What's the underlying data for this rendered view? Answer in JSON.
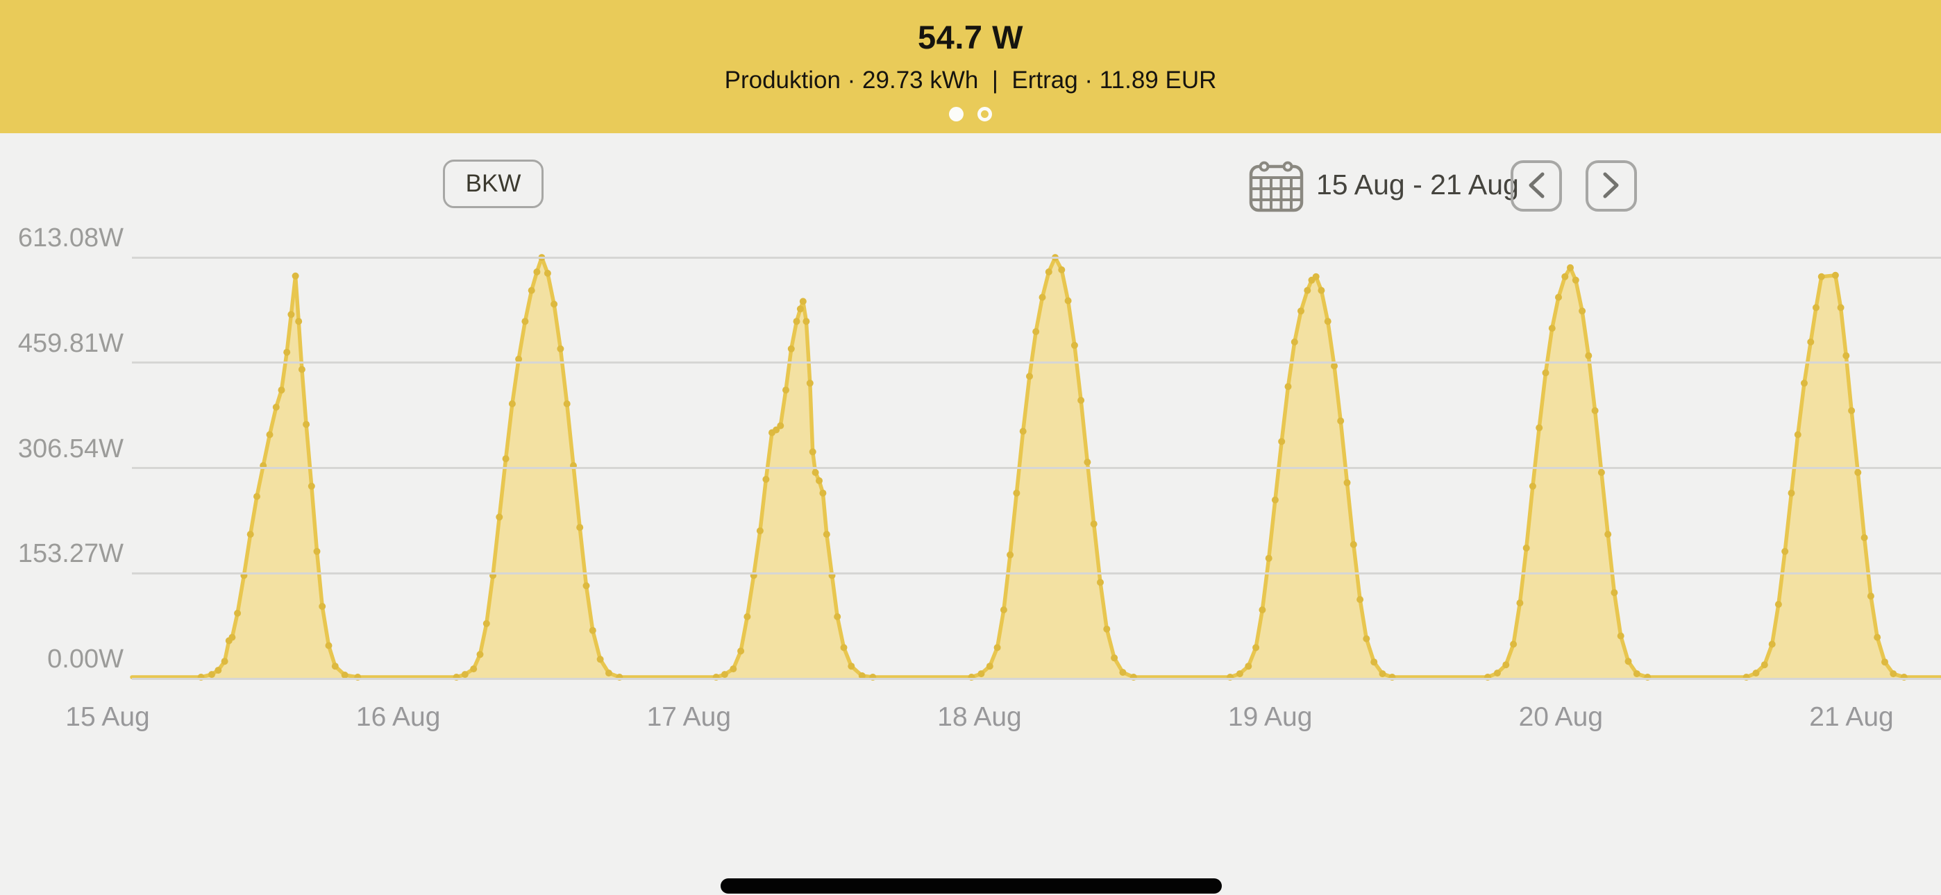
{
  "header": {
    "title": "54.7 W",
    "subtitle": "Produktion · 29.73 kWh  |  Ertrag · 11.89 EUR",
    "accent_bg": "#e9cb59",
    "text_color": "#16140f",
    "page_dots": {
      "count": 2,
      "active_index": 0
    }
  },
  "controls": {
    "source_button": "BKW",
    "date_range": "15 Aug - 21 Aug",
    "calendar_icon": "calendar-icon",
    "prev_icon": "chevron-left",
    "next_icon": "chevron-right"
  },
  "chart_data": {
    "type": "area",
    "title": "",
    "xlabel": "",
    "ylabel": "",
    "unit": "W",
    "ylim": [
      0,
      613.08
    ],
    "grid": true,
    "legend": "none",
    "y_ticks": [
      "613.08W",
      "459.81W",
      "306.54W",
      "153.27W",
      "0.00W"
    ],
    "y_values": [
      613.08,
      459.81,
      306.54,
      153.27,
      0
    ],
    "categories": [
      "15 Aug",
      "16 Aug",
      "17 Aug",
      "18 Aug",
      "19 Aug",
      "20 Aug",
      "21 Aug"
    ],
    "line_color": "#e8c64f",
    "fill_color": "#f3e1a2",
    "marker_color": "#ddb93f",
    "grid_color": "#d6d6d4",
    "series": [
      {
        "name": "Produktion",
        "days": [
          {
            "date": "15 Aug",
            "points": [
              [
                5.6,
                2
              ],
              [
                6.6,
                6
              ],
              [
                7.2,
                12
              ],
              [
                7.8,
                25
              ],
              [
                8.2,
                55
              ],
              [
                8.5,
                60
              ],
              [
                9.0,
                95
              ],
              [
                9.6,
                150
              ],
              [
                10.2,
                210
              ],
              [
                10.8,
                265
              ],
              [
                11.4,
                310
              ],
              [
                12.0,
                355
              ],
              [
                12.6,
                395
              ],
              [
                13.1,
                420
              ],
              [
                13.6,
                475
              ],
              [
                14.0,
                530
              ],
              [
                14.4,
                586
              ],
              [
                14.7,
                520
              ],
              [
                15.0,
                450
              ],
              [
                15.4,
                370
              ],
              [
                15.9,
                280
              ],
              [
                16.4,
                185
              ],
              [
                16.9,
                105
              ],
              [
                17.5,
                48
              ],
              [
                18.1,
                18
              ],
              [
                19.0,
                5
              ],
              [
                20.2,
                2
              ]
            ]
          },
          {
            "date": "16 Aug",
            "points": [
              [
                5.4,
                2
              ],
              [
                6.2,
                6
              ],
              [
                7.0,
                14
              ],
              [
                7.6,
                35
              ],
              [
                8.2,
                80
              ],
              [
                8.8,
                150
              ],
              [
                9.4,
                235
              ],
              [
                10.0,
                320
              ],
              [
                10.6,
                400
              ],
              [
                11.2,
                465
              ],
              [
                11.8,
                520
              ],
              [
                12.4,
                565
              ],
              [
                12.9,
                592
              ],
              [
                13.35,
                613
              ],
              [
                13.9,
                590
              ],
              [
                14.5,
                545
              ],
              [
                15.1,
                480
              ],
              [
                15.7,
                400
              ],
              [
                16.3,
                310
              ],
              [
                16.9,
                220
              ],
              [
                17.5,
                135
              ],
              [
                18.1,
                70
              ],
              [
                18.8,
                28
              ],
              [
                19.6,
                8
              ],
              [
                20.6,
                2
              ]
            ]
          },
          {
            "date": "17 Aug",
            "points": [
              [
                5.6,
                2
              ],
              [
                6.4,
                6
              ],
              [
                7.2,
                14
              ],
              [
                7.9,
                40
              ],
              [
                8.5,
                90
              ],
              [
                9.1,
                150
              ],
              [
                9.7,
                215
              ],
              [
                10.25,
                290
              ],
              [
                10.8,
                358
              ],
              [
                11.2,
                362
              ],
              [
                11.6,
                368
              ],
              [
                12.1,
                420
              ],
              [
                12.6,
                480
              ],
              [
                13.1,
                520
              ],
              [
                13.45,
                538
              ],
              [
                13.7,
                549
              ],
              [
                14.0,
                520
              ],
              [
                14.35,
                430
              ],
              [
                14.6,
                330
              ],
              [
                14.85,
                300
              ],
              [
                15.2,
                288
              ],
              [
                15.55,
                270
              ],
              [
                15.9,
                210
              ],
              [
                16.4,
                150
              ],
              [
                16.9,
                90
              ],
              [
                17.5,
                45
              ],
              [
                18.2,
                18
              ],
              [
                19.2,
                4
              ],
              [
                20.2,
                2
              ]
            ]
          },
          {
            "date": "18 Aug",
            "points": [
              [
                5.4,
                2
              ],
              [
                6.3,
                7
              ],
              [
                7.1,
                18
              ],
              [
                7.8,
                45
              ],
              [
                8.4,
                100
              ],
              [
                9.0,
                180
              ],
              [
                9.6,
                270
              ],
              [
                10.2,
                360
              ],
              [
                10.8,
                440
              ],
              [
                11.4,
                505
              ],
              [
                12.0,
                555
              ],
              [
                12.6,
                592
              ],
              [
                13.2,
                613
              ],
              [
                13.8,
                595
              ],
              [
                14.4,
                550
              ],
              [
                15.0,
                485
              ],
              [
                15.6,
                405
              ],
              [
                16.2,
                315
              ],
              [
                16.8,
                225
              ],
              [
                17.4,
                140
              ],
              [
                18.0,
                72
              ],
              [
                18.7,
                30
              ],
              [
                19.5,
                9
              ],
              [
                20.5,
                2
              ]
            ]
          },
          {
            "date": "19 Aug",
            "points": [
              [
                5.5,
                2
              ],
              [
                6.4,
                7
              ],
              [
                7.2,
                18
              ],
              [
                7.9,
                45
              ],
              [
                8.5,
                100
              ],
              [
                9.1,
                175
              ],
              [
                9.7,
                260
              ],
              [
                10.3,
                345
              ],
              [
                10.9,
                425
              ],
              [
                11.5,
                490
              ],
              [
                12.1,
                535
              ],
              [
                12.7,
                565
              ],
              [
                13.1,
                580
              ],
              [
                13.5,
                585
              ],
              [
                14.0,
                565
              ],
              [
                14.6,
                520
              ],
              [
                15.2,
                455
              ],
              [
                15.8,
                375
              ],
              [
                16.4,
                285
              ],
              [
                17.0,
                195
              ],
              [
                17.6,
                115
              ],
              [
                18.2,
                58
              ],
              [
                18.9,
                24
              ],
              [
                19.7,
                7
              ],
              [
                20.6,
                2
              ]
            ]
          },
          {
            "date": "20 Aug",
            "points": [
              [
                5.5,
                2
              ],
              [
                6.4,
                8
              ],
              [
                7.2,
                20
              ],
              [
                7.9,
                50
              ],
              [
                8.5,
                110
              ],
              [
                9.1,
                190
              ],
              [
                9.7,
                280
              ],
              [
                10.3,
                365
              ],
              [
                10.9,
                445
              ],
              [
                11.5,
                510
              ],
              [
                12.1,
                555
              ],
              [
                12.7,
                585
              ],
              [
                13.2,
                598
              ],
              [
                13.7,
                580
              ],
              [
                14.3,
                535
              ],
              [
                14.9,
                470
              ],
              [
                15.5,
                390
              ],
              [
                16.1,
                300
              ],
              [
                16.7,
                210
              ],
              [
                17.3,
                125
              ],
              [
                17.9,
                62
              ],
              [
                18.6,
                25
              ],
              [
                19.4,
                7
              ],
              [
                20.4,
                2
              ]
            ]
          },
          {
            "date": "21 Aug",
            "points": [
              [
                5.6,
                2
              ],
              [
                6.5,
                8
              ],
              [
                7.3,
                20
              ],
              [
                8.0,
                50
              ],
              [
                8.6,
                108
              ],
              [
                9.2,
                185
              ],
              [
                9.8,
                270
              ],
              [
                10.4,
                355
              ],
              [
                11.0,
                430
              ],
              [
                11.6,
                490
              ],
              [
                12.1,
                540
              ],
              [
                12.6,
                585
              ],
              [
                13.9,
                587
              ],
              [
                14.4,
                540
              ],
              [
                14.9,
                470
              ],
              [
                15.4,
                390
              ],
              [
                16.0,
                300
              ],
              [
                16.6,
                205
              ],
              [
                17.2,
                120
              ],
              [
                17.8,
                60
              ],
              [
                18.5,
                24
              ],
              [
                19.3,
                7
              ],
              [
                20.3,
                2
              ]
            ]
          }
        ]
      }
    ]
  },
  "footer": {
    "home_indicator": "drag-handle"
  }
}
